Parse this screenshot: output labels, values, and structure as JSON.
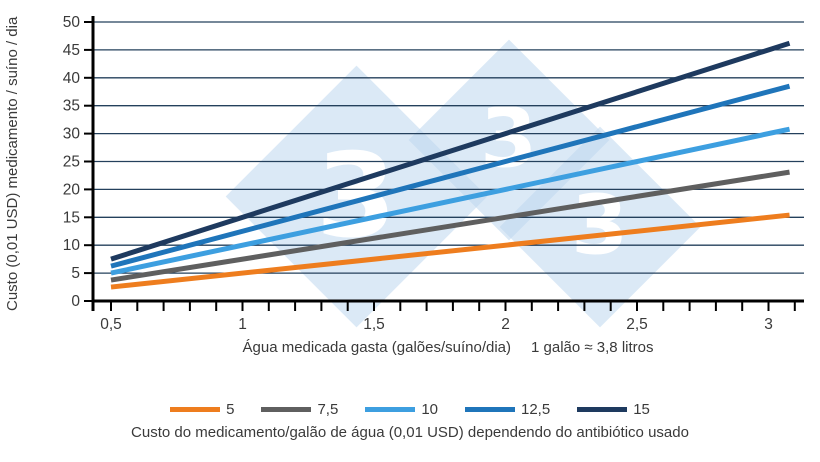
{
  "watermark": {
    "glyph": "3",
    "color": "#BDD7EE"
  },
  "colors": {
    "gridline": "#24405C",
    "axis": "#000000",
    "text": "#3A3A3A"
  },
  "chart_data": {
    "type": "line",
    "title": "",
    "xlabel": "Água medicada gasta (galões/suíno/dia)",
    "xlabel_note": "1 galão ≈ 3,8 litros",
    "ylabel": "Custo (0,01 USD) medicamento / suíno / dia",
    "xlim": [
      0.42,
      3.17
    ],
    "ylim": [
      0,
      50
    ],
    "grid": "horizontal",
    "legend_position": "bottom",
    "legend_caption": "Custo do medicamento/galão de água (0,01 USD) dependendo do antibiótico usado",
    "y_ticks": [
      0,
      5,
      10,
      15,
      20,
      25,
      30,
      35,
      40,
      45,
      50
    ],
    "x_major_ticks": [
      {
        "value": 0.5,
        "label": "0,5"
      },
      {
        "value": 1,
        "label": "1"
      },
      {
        "value": 1.5,
        "label": "1,5"
      },
      {
        "value": 2,
        "label": "2"
      },
      {
        "value": 2.5,
        "label": "2,5"
      },
      {
        "value": 3,
        "label": "3"
      }
    ],
    "x_minor_tick": {
      "start": 0.5,
      "end": 3.1,
      "step": 0.1
    },
    "series": [
      {
        "name": "5",
        "cost_per_gallon": 5,
        "color": "#EE7D1E",
        "x": [
          0.5,
          3.08
        ],
        "y": [
          2.5,
          15.4
        ]
      },
      {
        "name": "7,5",
        "cost_per_gallon": 7.5,
        "color": "#5F5F5F",
        "x": [
          0.5,
          3.08
        ],
        "y": [
          3.75,
          23.1
        ]
      },
      {
        "name": "10",
        "cost_per_gallon": 10,
        "color": "#3D9FE0",
        "x": [
          0.5,
          3.08
        ],
        "y": [
          5,
          30.8
        ]
      },
      {
        "name": "12,5",
        "cost_per_gallon": 12.5,
        "color": "#1F75BA",
        "x": [
          0.5,
          3.08
        ],
        "y": [
          6.25,
          38.5
        ]
      },
      {
        "name": "15",
        "cost_per_gallon": 15,
        "color": "#1E3A5F",
        "x": [
          0.5,
          3.08
        ],
        "y": [
          7.5,
          46.2
        ]
      }
    ]
  }
}
